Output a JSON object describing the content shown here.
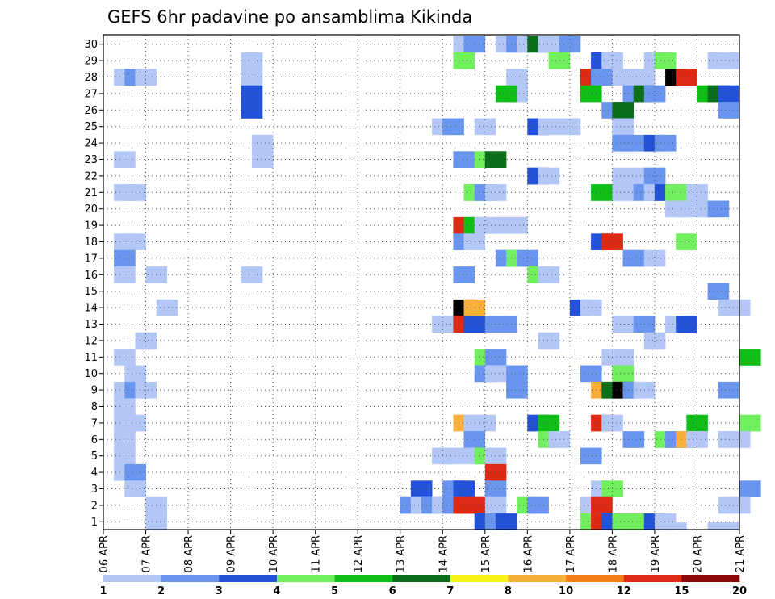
{
  "chart_data": {
    "type": "heatmap",
    "title": "GEFS 6hr padavine po ansamblima Kikinda",
    "xlabel": "",
    "ylabel": "",
    "grid": true,
    "x_tick_labels": [
      "06 APR",
      "07 APR",
      "08 APR",
      "09 APR",
      "10 APR",
      "11 APR",
      "12 APR",
      "13 APR",
      "14 APR",
      "15 APR",
      "16 APR",
      "17 APR",
      "18 APR",
      "19 APR",
      "20 APR",
      "21 APR"
    ],
    "x_range": [
      "06 APR 00Z",
      "21 APR 00Z"
    ],
    "y_categories": [
      1,
      2,
      3,
      4,
      5,
      6,
      7,
      8,
      9,
      10,
      11,
      12,
      13,
      14,
      15,
      16,
      17,
      18,
      19,
      20,
      21,
      22,
      23,
      24,
      25,
      26,
      27,
      28,
      29,
      30
    ],
    "legend": {
      "placement": "bottom",
      "thresholds": [
        "1",
        "2",
        "3",
        "4",
        "5",
        "6",
        "7",
        "8",
        "10",
        "12",
        "15",
        "20"
      ],
      "colors": [
        "#b3c7f7",
        "#6a95ef",
        "#2352d8",
        "#72ef5e",
        "#0fbf18",
        "#0a6e1a",
        "#f6f21a",
        "#f8b03a",
        "#f47e18",
        "#dc2a14",
        "#8a0a0a"
      ]
    },
    "cells": [
      [
        0.5,
        28,
        1
      ],
      [
        1,
        28,
        2
      ],
      [
        1.5,
        28,
        1
      ],
      [
        6.5,
        28,
        1
      ],
      [
        6.5,
        29,
        1
      ],
      [
        6.5,
        27,
        3
      ],
      [
        6.5,
        26,
        3
      ],
      [
        7,
        24,
        1
      ],
      [
        7,
        23,
        1
      ],
      [
        0.5,
        23,
        1
      ],
      [
        0.5,
        21,
        1
      ],
      [
        1,
        21,
        1
      ],
      [
        0.5,
        18,
        1
      ],
      [
        1,
        18,
        1
      ],
      [
        0.5,
        17,
        2
      ],
      [
        0.5,
        16,
        1
      ],
      [
        2,
        16,
        1
      ],
      [
        2.5,
        14,
        1
      ],
      [
        6.5,
        16,
        1
      ],
      [
        1.5,
        12,
        1
      ],
      [
        0.5,
        11,
        1
      ],
      [
        1,
        10,
        1
      ],
      [
        0.5,
        9,
        1
      ],
      [
        1,
        9,
        2
      ],
      [
        1.5,
        9,
        1
      ],
      [
        0.5,
        8,
        1
      ],
      [
        0.5,
        7,
        1
      ],
      [
        1,
        7,
        1
      ],
      [
        0.5,
        6,
        1
      ],
      [
        0.5,
        5,
        1
      ],
      [
        0.5,
        4,
        1
      ],
      [
        1,
        4,
        2
      ],
      [
        1,
        3,
        1
      ],
      [
        2,
        2,
        1
      ],
      [
        2,
        1,
        1
      ],
      [
        16.5,
        30,
        1
      ],
      [
        17,
        30,
        2
      ],
      [
        18.5,
        30,
        1
      ],
      [
        19,
        30,
        2
      ],
      [
        19.5,
        30,
        1
      ],
      [
        20,
        30,
        6
      ],
      [
        20.5,
        30,
        1
      ],
      [
        21,
        30,
        1
      ],
      [
        21.5,
        30,
        2
      ],
      [
        16.5,
        29,
        4
      ],
      [
        21,
        29,
        4
      ],
      [
        23,
        29,
        3
      ],
      [
        23.5,
        29,
        1
      ],
      [
        25.5,
        29,
        1
      ],
      [
        26,
        29,
        4
      ],
      [
        28.5,
        29,
        1
      ],
      [
        29,
        29,
        1
      ],
      [
        19,
        28,
        1
      ],
      [
        22.5,
        28,
        10
      ],
      [
        23,
        28,
        2
      ],
      [
        24,
        28,
        1
      ],
      [
        25,
        28,
        1
      ],
      [
        26.5,
        28,
        15
      ],
      [
        27,
        28,
        10
      ],
      [
        19,
        27,
        1
      ],
      [
        18.5,
        27,
        5
      ],
      [
        22.5,
        27,
        5
      ],
      [
        24.5,
        27,
        2
      ],
      [
        25,
        27,
        6
      ],
      [
        25.5,
        27,
        2
      ],
      [
        28,
        27,
        5
      ],
      [
        28.5,
        27,
        6
      ],
      [
        29,
        27,
        3
      ],
      [
        23.5,
        26,
        2
      ],
      [
        24,
        26,
        6
      ],
      [
        29,
        26,
        2
      ],
      [
        15.5,
        25,
        1
      ],
      [
        16,
        25,
        2
      ],
      [
        17.5,
        25,
        1
      ],
      [
        20,
        25,
        3
      ],
      [
        20.5,
        25,
        1
      ],
      [
        21.5,
        25,
        1
      ],
      [
        24,
        25,
        1
      ],
      [
        24,
        24,
        2
      ],
      [
        24.5,
        24,
        2
      ],
      [
        25.5,
        24,
        3
      ],
      [
        26,
        24,
        2
      ],
      [
        16.5,
        23,
        2
      ],
      [
        17.5,
        23,
        4
      ],
      [
        18,
        23,
        6
      ],
      [
        20,
        22,
        3
      ],
      [
        20.5,
        22,
        1
      ],
      [
        24,
        22,
        1
      ],
      [
        25,
        22,
        1
      ],
      [
        25.5,
        22,
        2
      ],
      [
        17,
        21,
        4
      ],
      [
        17.5,
        21,
        2
      ],
      [
        18,
        21,
        1
      ],
      [
        23,
        21,
        5
      ],
      [
        24,
        21,
        1
      ],
      [
        25,
        21,
        2
      ],
      [
        25.5,
        21,
        1
      ],
      [
        26,
        21,
        3
      ],
      [
        26.5,
        21,
        4
      ],
      [
        27,
        21,
        4
      ],
      [
        27.5,
        21,
        1
      ],
      [
        26.5,
        20,
        1
      ],
      [
        27,
        20,
        1
      ],
      [
        28,
        20,
        1
      ],
      [
        28.5,
        20,
        2
      ],
      [
        16.5,
        19,
        10
      ],
      [
        17,
        19,
        5
      ],
      [
        17.5,
        19,
        1
      ],
      [
        18,
        19,
        1
      ],
      [
        19,
        19,
        1
      ],
      [
        16.5,
        18,
        2
      ],
      [
        17,
        18,
        1
      ],
      [
        23,
        18,
        3
      ],
      [
        23.5,
        18,
        10
      ],
      [
        27,
        18,
        4
      ],
      [
        18.5,
        17,
        2
      ],
      [
        19,
        17,
        4
      ],
      [
        19.5,
        17,
        2
      ],
      [
        24.5,
        17,
        2
      ],
      [
        25.5,
        17,
        1
      ],
      [
        16.5,
        16,
        2
      ],
      [
        20,
        16,
        4
      ],
      [
        20.5,
        16,
        1
      ],
      [
        28.5,
        15,
        2
      ],
      [
        16.5,
        14,
        15
      ],
      [
        17,
        14,
        8
      ],
      [
        22,
        14,
        3
      ],
      [
        22.5,
        14,
        1
      ],
      [
        29,
        14,
        1
      ],
      [
        29.5,
        14,
        1
      ],
      [
        15.5,
        13,
        1
      ],
      [
        16.5,
        13,
        10
      ],
      [
        17,
        13,
        3
      ],
      [
        17.5,
        13,
        3
      ],
      [
        18,
        13,
        2
      ],
      [
        18.5,
        13,
        2
      ],
      [
        24,
        13,
        1
      ],
      [
        25,
        13,
        2
      ],
      [
        26.5,
        13,
        1
      ],
      [
        27,
        13,
        3
      ],
      [
        20.5,
        12,
        1
      ],
      [
        25.5,
        12,
        1
      ],
      [
        17.5,
        11,
        4
      ],
      [
        18,
        11,
        2
      ],
      [
        23.5,
        11,
        1
      ],
      [
        24,
        11,
        1
      ],
      [
        30,
        11,
        5
      ],
      [
        17.5,
        10,
        2
      ],
      [
        18,
        10,
        1
      ],
      [
        19,
        10,
        2
      ],
      [
        22.5,
        10,
        2
      ],
      [
        24,
        10,
        4
      ],
      [
        19,
        9,
        2
      ],
      [
        23,
        9,
        8
      ],
      [
        23.5,
        9,
        6
      ],
      [
        24,
        9,
        15
      ],
      [
        24.5,
        9,
        2
      ],
      [
        25,
        9,
        1
      ],
      [
        29,
        9,
        2
      ],
      [
        16.5,
        7,
        8
      ],
      [
        17,
        7,
        1
      ],
      [
        17.5,
        7,
        1
      ],
      [
        20,
        7,
        3
      ],
      [
        20.5,
        7,
        5
      ],
      [
        23,
        7,
        10
      ],
      [
        23.5,
        7,
        1
      ],
      [
        27.5,
        7,
        5
      ],
      [
        30,
        7,
        4
      ],
      [
        17,
        6,
        2
      ],
      [
        20.5,
        6,
        4
      ],
      [
        21,
        6,
        1
      ],
      [
        24.5,
        6,
        2
      ],
      [
        26,
        6,
        4
      ],
      [
        26.5,
        6,
        2
      ],
      [
        27,
        6,
        8
      ],
      [
        27.5,
        6,
        1
      ],
      [
        29,
        6,
        1
      ],
      [
        29.5,
        6,
        1
      ],
      [
        15.5,
        5,
        1
      ],
      [
        16,
        5,
        1
      ],
      [
        17,
        5,
        1
      ],
      [
        17.5,
        5,
        4
      ],
      [
        18,
        5,
        1
      ],
      [
        22.5,
        5,
        2
      ],
      [
        18,
        4,
        10
      ],
      [
        14.5,
        3,
        3
      ],
      [
        16,
        3,
        2
      ],
      [
        16.5,
        3,
        3
      ],
      [
        18,
        3,
        2
      ],
      [
        23,
        3,
        1
      ],
      [
        23.5,
        3,
        4
      ],
      [
        30,
        3,
        2
      ],
      [
        14,
        2,
        2
      ],
      [
        14.5,
        2,
        1
      ],
      [
        15,
        2,
        2
      ],
      [
        15.5,
        2,
        1
      ],
      [
        16,
        2,
        2
      ],
      [
        16.5,
        2,
        10
      ],
      [
        17,
        2,
        10
      ],
      [
        18,
        2,
        1
      ],
      [
        19.5,
        2,
        4
      ],
      [
        20,
        2,
        2
      ],
      [
        22.5,
        2,
        1
      ],
      [
        23,
        2,
        10
      ],
      [
        29,
        2,
        1
      ],
      [
        29.5,
        2,
        1
      ],
      [
        17.5,
        1,
        3
      ],
      [
        18,
        1,
        2
      ],
      [
        18.5,
        1,
        3
      ],
      [
        22.5,
        1,
        4
      ],
      [
        23,
        1,
        10
      ],
      [
        23.5,
        1,
        3
      ],
      [
        24,
        1,
        4
      ],
      [
        24.5,
        1,
        4
      ],
      [
        25,
        1,
        4
      ],
      [
        25.5,
        1,
        3
      ],
      [
        26,
        1,
        1
      ],
      [
        26.5,
        0,
        1
      ],
      [
        28.5,
        0,
        1
      ],
      [
        29,
        0,
        1
      ]
    ]
  }
}
